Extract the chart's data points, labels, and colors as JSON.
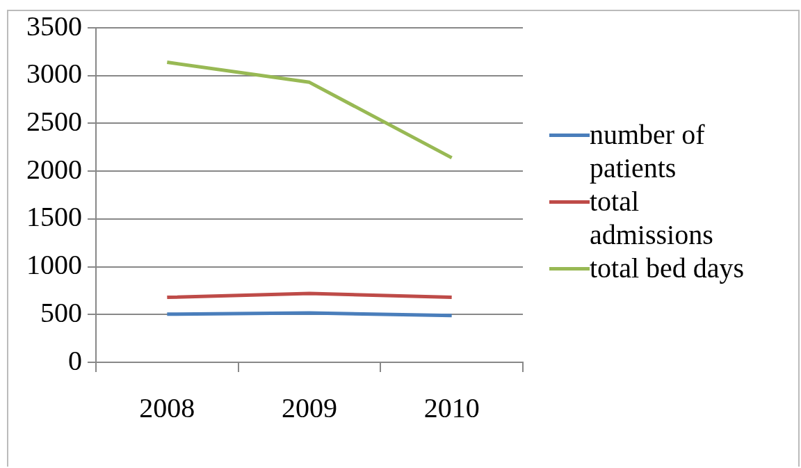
{
  "chart_data": {
    "type": "line",
    "categories": [
      "2008",
      "2009",
      "2010"
    ],
    "series": [
      {
        "name": "number of patients",
        "color": "#4a7ebb",
        "values": [
          503,
          517,
          489
        ]
      },
      {
        "name": "total admissions",
        "color": "#be4b48",
        "values": [
          680,
          720,
          680
        ]
      },
      {
        "name": "total bed days",
        "color": "#98b954",
        "values": [
          3140,
          2930,
          2140
        ]
      }
    ],
    "ylim": [
      0,
      3500
    ],
    "yticks": [
      0,
      500,
      1000,
      1500,
      2000,
      2500,
      3000,
      3500
    ],
    "grid": "y",
    "legend": "right",
    "marker": "none",
    "line_style": "solid"
  }
}
